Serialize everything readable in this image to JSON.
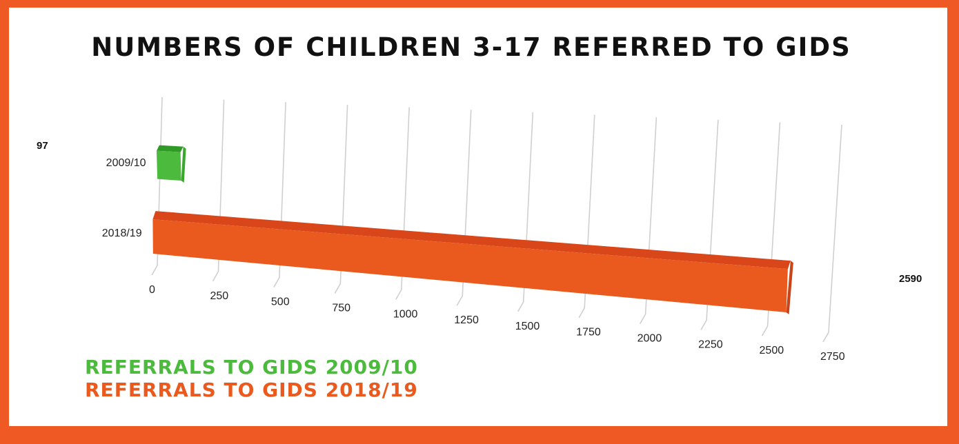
{
  "chart_data": {
    "type": "bar",
    "orientation": "horizontal",
    "style": "3d",
    "title": "NUMBERS OF CHILDREN 3-17 REFERRED TO GIDS",
    "categories": [
      "2009/10",
      "2018/19"
    ],
    "values": [
      97,
      2590
    ],
    "data_labels": [
      "97",
      "2590"
    ],
    "xlim": [
      0,
      2750
    ],
    "x_ticks": [
      "0",
      "250",
      "500",
      "750",
      "1000",
      "1250",
      "1500",
      "1750",
      "2000",
      "2250",
      "2500",
      "2750"
    ],
    "grid": true,
    "colors": [
      "#4cba3c",
      "#ea5a1f"
    ],
    "legend": [
      {
        "label": "REFERRALS TO GIDS 2009/10",
        "color": "#4cba3c"
      },
      {
        "label": "REFERRALS TO GIDS 2018/19",
        "color": "#ea5a1f"
      }
    ]
  }
}
